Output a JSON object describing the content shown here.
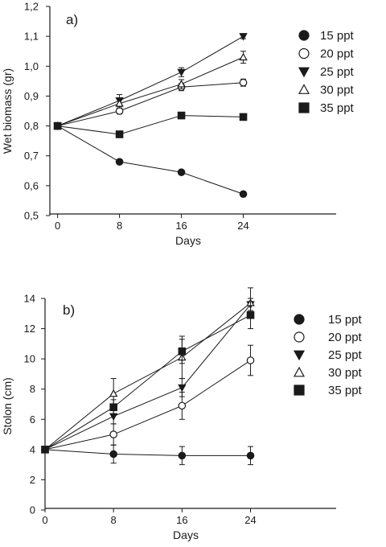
{
  "chart_data": [
    {
      "type": "line",
      "panel_label": "a)",
      "xlabel": "Days",
      "ylabel": "Wet biomass (gr)",
      "x": [
        0,
        8,
        16,
        24
      ],
      "xticks": [
        "0",
        "8",
        "16",
        "24"
      ],
      "xlim": [
        -1,
        36
      ],
      "ylim": [
        0.5,
        1.2
      ],
      "yticks": [
        "0,5",
        "0,6",
        "0,7",
        "0,8",
        "0,9",
        "1,0",
        "1,1",
        "1,2"
      ],
      "legend_position": "right",
      "grid": false,
      "series": [
        {
          "name": "15 ppt",
          "marker": "filled-circle",
          "values": [
            0.8,
            0.68,
            0.645,
            0.572
          ],
          "err": [
            0,
            0.008,
            0.008,
            0.008
          ]
        },
        {
          "name": "20 ppt",
          "marker": "open-circle",
          "values": [
            0.8,
            0.85,
            0.93,
            0.945
          ],
          "err": [
            0,
            0.01,
            0.012,
            0.012
          ]
        },
        {
          "name": "25 ppt",
          "marker": "filled-triangle-down",
          "values": [
            0.8,
            0.885,
            0.98,
            1.1
          ],
          "err": [
            0,
            0.02,
            0.015,
            0.008
          ]
        },
        {
          "name": "30 ppt",
          "marker": "open-triangle-up",
          "values": [
            0.8,
            0.875,
            0.94,
            1.03
          ],
          "err": [
            0,
            0.015,
            0.015,
            0.02
          ]
        },
        {
          "name": "35 ppt",
          "marker": "filled-square",
          "values": [
            0.8,
            0.772,
            0.835,
            0.83
          ],
          "err": [
            0,
            0.01,
            0.008,
            0.008
          ]
        }
      ]
    },
    {
      "type": "line",
      "panel_label": "b)",
      "xlabel": "Days",
      "ylabel": "Stolon (cm)",
      "x": [
        0,
        8,
        16,
        24
      ],
      "xticks": [
        "0",
        "8",
        "16",
        "24"
      ],
      "xlim": [
        0,
        34
      ],
      "ylim": [
        0,
        14
      ],
      "yticks": [
        "0",
        "2",
        "4",
        "6",
        "8",
        "10",
        "12",
        "14"
      ],
      "legend_position": "right",
      "grid": false,
      "series": [
        {
          "name": "15 ppt",
          "marker": "filled-circle",
          "values": [
            4.0,
            3.7,
            3.6,
            3.6
          ],
          "err": [
            0,
            0.6,
            0.6,
            0.6
          ]
        },
        {
          "name": "20 ppt",
          "marker": "open-circle",
          "values": [
            4.0,
            5.0,
            6.9,
            9.9
          ],
          "err": [
            0,
            0.7,
            0.9,
            1.0
          ]
        },
        {
          "name": "25 ppt",
          "marker": "filled-triangle-down",
          "values": [
            4.0,
            6.2,
            8.1,
            13.6
          ],
          "err": [
            0,
            0.5,
            0.6,
            0.4
          ]
        },
        {
          "name": "30 ppt",
          "marker": "open-triangle-up",
          "values": [
            4.0,
            7.7,
            10.1,
            13.7
          ],
          "err": [
            0,
            1.0,
            1.4,
            1.0
          ]
        },
        {
          "name": "35 ppt",
          "marker": "filled-square",
          "values": [
            4.0,
            6.8,
            10.5,
            12.9
          ],
          "err": [
            0,
            0.5,
            0.8,
            0.9
          ]
        }
      ]
    }
  ]
}
